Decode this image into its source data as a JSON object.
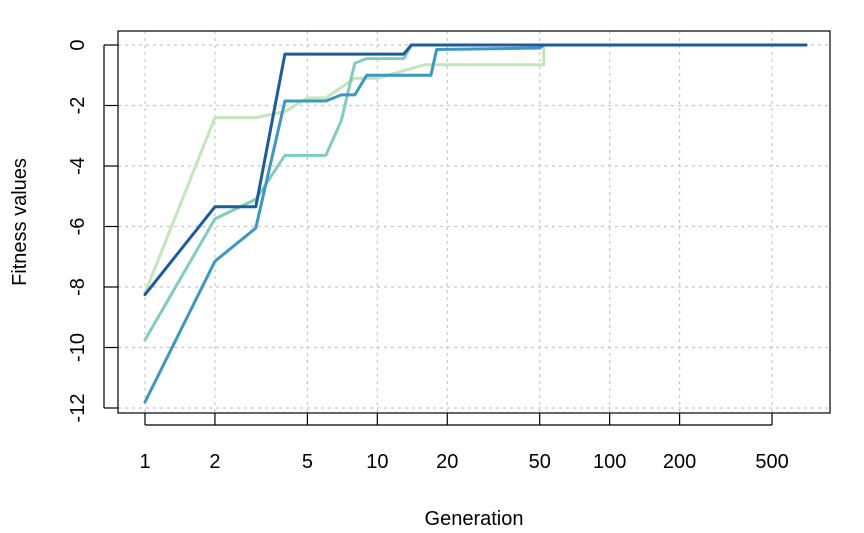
{
  "chart_data": {
    "type": "line",
    "title": "",
    "xlabel": "Generation",
    "ylabel": "Fitness values",
    "xscale": "log",
    "xlim": [
      1,
      700
    ],
    "ylim": [
      -12,
      0
    ],
    "x_ticks": [
      1,
      2,
      5,
      10,
      20,
      50,
      100,
      200,
      500
    ],
    "x_tick_labels": [
      "1",
      "2",
      "5",
      "10",
      "20",
      "50",
      "100",
      "200",
      "500"
    ],
    "y_ticks": [
      0,
      -2,
      -4,
      -6,
      -8,
      -10,
      -12
    ],
    "y_tick_labels": [
      "0",
      "-2",
      "-4",
      "-6",
      "-8",
      "-10",
      "-12"
    ],
    "grid": true,
    "legend": "none",
    "series": [
      {
        "color": "#c2e6b9",
        "points": [
          [
            1,
            -8.2
          ],
          [
            2,
            -2.4
          ],
          [
            3,
            -2.4
          ],
          [
            4,
            -2.2
          ],
          [
            5,
            -1.75
          ],
          [
            6,
            -1.75
          ],
          [
            8,
            -1.1
          ],
          [
            10,
            -1.1
          ],
          [
            16,
            -0.65
          ],
          [
            52,
            -0.65
          ],
          [
            52,
            0
          ],
          [
            700,
            0
          ]
        ]
      },
      {
        "color": "#7fcdbb",
        "points": [
          [
            1,
            -9.75
          ],
          [
            2,
            -5.75
          ],
          [
            3,
            -5.1
          ],
          [
            4,
            -3.65
          ],
          [
            6,
            -3.65
          ],
          [
            7,
            -2.5
          ],
          [
            8,
            -0.6
          ],
          [
            9,
            -0.45
          ],
          [
            13,
            -0.45
          ],
          [
            14,
            0
          ],
          [
            700,
            0
          ]
        ]
      },
      {
        "color": "#3e96c2",
        "points": [
          [
            1,
            -11.8
          ],
          [
            2,
            -7.15
          ],
          [
            3,
            -6.05
          ],
          [
            4,
            -1.85
          ],
          [
            6,
            -1.85
          ],
          [
            7,
            -1.65
          ],
          [
            8,
            -1.65
          ],
          [
            9,
            -1.0
          ],
          [
            17,
            -1.0
          ],
          [
            18,
            -0.15
          ],
          [
            50,
            -0.1
          ],
          [
            52,
            0
          ],
          [
            700,
            0
          ]
        ]
      },
      {
        "color": "#1d5c9c",
        "points": [
          [
            1,
            -8.25
          ],
          [
            2,
            -5.35
          ],
          [
            3,
            -5.35
          ],
          [
            4,
            -0.3
          ],
          [
            13,
            -0.3
          ],
          [
            14,
            0
          ],
          [
            700,
            0
          ]
        ]
      }
    ]
  }
}
